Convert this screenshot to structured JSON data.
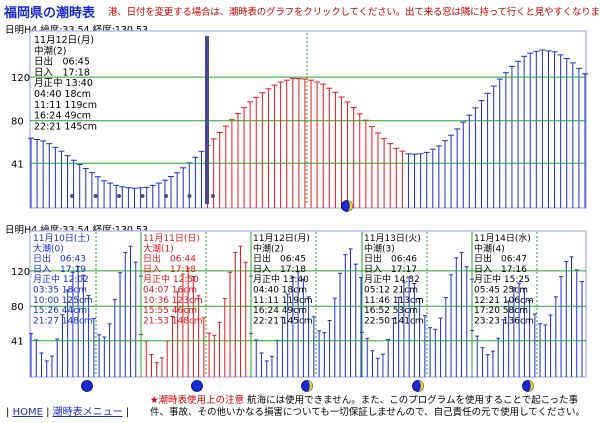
{
  "page": {
    "title": "福岡県の潮時表",
    "instruction": "港、日付を変更する場合は、潮時表のグラフをクリックしてください。出て来る窓は隣に持って行くと見やすくなります"
  },
  "top_chart": {
    "header": "日明H4 緯度:33.54 経度:130.53",
    "info": [
      "11月12日(月)",
      "中潮(2)",
      "日出　06:45",
      "日入　17:18",
      "月正中 13:40",
      "04:40 18cm",
      "11:11 119cm",
      "16:24 49cm",
      "22:21 145cm"
    ]
  },
  "bottom_chart": {
    "header": "日明H4 緯度:33.54 経度:130.53",
    "days": [
      {
        "lines": [
          "11月10日(土)",
          "大潮(0)",
          "日出　06:43",
          "日入　17:19",
          "月正中 12:02",
          "03:35 18cm",
          "10:00 125cm",
          "15:26 44cm",
          "21:27 148cm"
        ],
        "color": "#1a2bd6",
        "moon": "new"
      },
      {
        "lines": [
          "11月11日(日)",
          "大潮(1)",
          "日出　06:44",
          "日入　17:18",
          "月正中 12:50",
          "04:07 16cm",
          "10:36 123cm",
          "15:55 46cm",
          "21:53 148cm"
        ],
        "color": "#e8141e",
        "moon": "new"
      },
      {
        "lines": [
          "11月12日(月)",
          "中潮(2)",
          "日出　06:45",
          "日入　17:18",
          "月正中 13:40",
          "04:40 18cm",
          "11:11 119cm",
          "16:24 49cm",
          "22:21 145cm"
        ],
        "color": "#000000",
        "moon": "crescent"
      },
      {
        "lines": [
          "11月13日(火)",
          "中潮(3)",
          "日出　06:46",
          "日入　17:17",
          "月正中 14:32",
          "05:12 21cm",
          "11:46 113cm",
          "16:52 53cm",
          "22:50 141cm"
        ],
        "color": "#000000",
        "moon": "crescent"
      },
      {
        "lines": [
          "11月14日(水)",
          "中潮(4)",
          "日出　06:47",
          "日入　17:16",
          "月正中 15:25",
          "05:45 25cm",
          "12:21 106cm",
          "17:20 58cm",
          "23:23 136cm"
        ],
        "color": "#000000",
        "moon": "crescent"
      }
    ]
  },
  "footer": {
    "home_label": "HOME",
    "menu_label": "潮時表メニュー",
    "notice_title": "★潮時表使用上の注意",
    "notice_text": "航海には使用できません。また、このプログラムを使用することで起こった事件、事故、その他いかなる損害についても一切保証しませんので、自己責任の元で使用してください。"
  },
  "chart_data": [
    {
      "type": "bar",
      "title": "日明H4 緯度:33.54 経度:130.53",
      "ylabel": "",
      "xlabel": "",
      "y_ticks": [
        41,
        80,
        120
      ],
      "reference_lines": [
        41,
        80,
        120
      ],
      "ylim": [
        0,
        165
      ],
      "period": "11月12日(月)",
      "series": [
        {
          "values": [
            64,
            61,
            53,
            43,
            34,
            25,
            20,
            18,
            19,
            24,
            32,
            43,
            56,
            70,
            84,
            97,
            107,
            115,
            119,
            118,
            114,
            105,
            94,
            80,
            66,
            55,
            49,
            50,
            57,
            69,
            84,
            100,
            116,
            130,
            141,
            145,
            143,
            135,
            123
          ]
        }
      ],
      "current_time": "10:20",
      "moon_phase": "crescent"
    },
    {
      "type": "bar",
      "title": "日明H4 緯度:33.54 経度:130.53",
      "ylabel": "",
      "xlabel": "",
      "y_ticks": [
        41,
        80,
        120
      ],
      "reference_lines": [
        41,
        80,
        120
      ],
      "ylim": [
        0,
        165
      ],
      "categories": [
        "11月10日(土)",
        "11月11日(日)",
        "11月12日(月)",
        "11月13日(火)",
        "11月14日(水)"
      ],
      "high_low": [
        [
          [
            18,
            125,
            44,
            148
          ]
        ],
        [
          [
            16,
            123,
            46,
            148
          ]
        ],
        [
          [
            18,
            119,
            49,
            145
          ]
        ],
        [
          [
            21,
            113,
            53,
            141
          ]
        ],
        [
          [
            25,
            106,
            58,
            136
          ]
        ]
      ],
      "moon_phase": [
        "new",
        "new",
        "crescent",
        "crescent",
        "crescent"
      ]
    }
  ],
  "colors": {
    "title": "#1a2bd6",
    "instruction": "#cc0000",
    "past_bars": "#1a2bd6",
    "today_bars": "#e8141e",
    "ref_line": "#2aa02a",
    "now_marker": "#4a4a8a"
  }
}
